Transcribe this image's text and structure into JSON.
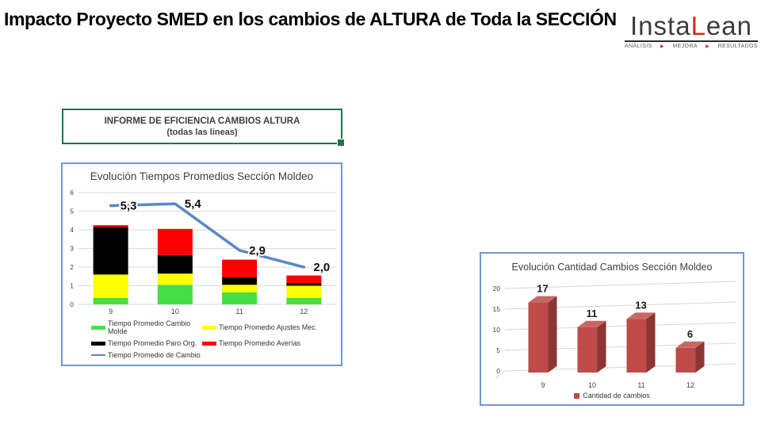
{
  "slide": {
    "title": "Impacto Proyecto SMED en los cambios de ALTURA de Toda la SECCIÓN"
  },
  "logo": {
    "name_pre": "Insta",
    "name_accent": "L",
    "name_post": "ean",
    "tagline_items": [
      "ANÁLISIS",
      "MEJORA",
      "RESULTADOS"
    ],
    "separator_icon": "▶",
    "accent_color": "#d42a1e",
    "text_color": "#3c3c3c"
  },
  "report_box": {
    "line1": "INFORME DE EFICIENCIA CAMBIOS ALTURA",
    "line2": "(todas las lineas)",
    "border_color": "#217346"
  },
  "chart_data": [
    {
      "type": "bar",
      "subtype": "stacked-column-with-line",
      "title": "Evolución Tiempos Promedios Sección Moldeo",
      "categories": [
        "9",
        "10",
        "11",
        "12"
      ],
      "series": [
        {
          "name": "Tiempo Promedio Cambio Molde",
          "color": "#46de46",
          "values": [
            0.35,
            1.05,
            0.65,
            0.35
          ]
        },
        {
          "name": "Tiempo Promedio Ajustes Mec.",
          "color": "#ffff00",
          "values": [
            1.25,
            0.6,
            0.4,
            0.65
          ]
        },
        {
          "name": "Tiempo Promedio Paro Org.",
          "color": "#000000",
          "values": [
            2.55,
            1.0,
            0.4,
            0.15
          ]
        },
        {
          "name": "Tiempo Promedio Averías",
          "color": "#ff0000",
          "values": [
            0.1,
            1.4,
            0.95,
            0.4
          ]
        }
      ],
      "line_series": {
        "name": "Tiempo Promedio de Cambio",
        "color": "#5b87c5",
        "values": [
          5.3,
          5.4,
          2.9,
          2.0
        ],
        "labels": [
          "5,3",
          "5,4",
          "2,9",
          "2,0"
        ]
      },
      "xlabel": "",
      "ylabel": "",
      "ylim": [
        0,
        6
      ],
      "yticks": [
        0,
        1,
        2,
        3,
        4,
        5,
        6
      ],
      "grid": true,
      "grid_color": "#d9d9d9",
      "legend_position": "bottom"
    },
    {
      "type": "bar",
      "subtype": "3d-column",
      "title": "Evolución Cantidad Cambios Sección Moldeo",
      "categories": [
        "9",
        "10",
        "11",
        "12"
      ],
      "series": [
        {
          "name": "Cantidad de cambios",
          "values": [
            17,
            11,
            13,
            6
          ],
          "labels": [
            "17",
            "11",
            "13",
            "6"
          ],
          "color": "#be4b48",
          "color_top": "#c96863",
          "color_side": "#8c3633"
        }
      ],
      "xlabel": "",
      "ylabel": "",
      "ylim": [
        0,
        20
      ],
      "yticks": [
        0,
        5,
        10,
        15,
        20
      ],
      "grid": true,
      "grid_color": "#d6d6d6",
      "legend_position": "bottom"
    }
  ]
}
